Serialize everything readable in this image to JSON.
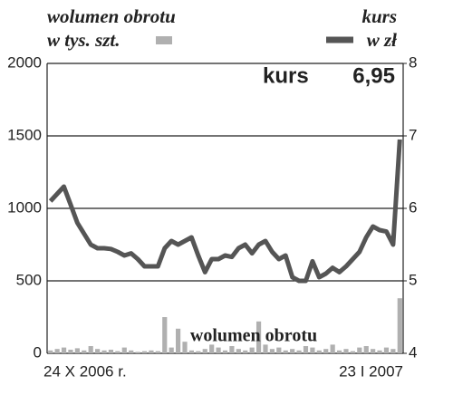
{
  "chart_data": {
    "type": "bar-line",
    "legend_left": [
      "wolumen obrotu",
      "w tys. szt."
    ],
    "legend_right": [
      "kurs",
      "w zł"
    ],
    "annotation": "wolumen obrotu",
    "categories": [
      "24 X 2006 r.",
      null,
      null,
      null,
      null,
      null,
      null,
      null,
      null,
      null,
      null,
      null,
      null,
      null,
      null,
      null,
      null,
      null,
      null,
      null,
      null,
      null,
      null,
      null,
      null,
      null,
      null,
      null,
      null,
      null,
      null,
      null,
      null,
      null,
      null,
      null,
      null,
      null,
      null,
      null,
      null,
      null,
      null,
      null,
      null,
      null,
      null,
      null,
      null,
      null,
      null,
      null,
      "23 I 2007"
    ],
    "series": [
      {
        "name": "wolumen obrotu",
        "color": "#b0b0b0",
        "axis": "y",
        "values": [
          20,
          30,
          40,
          25,
          35,
          20,
          50,
          30,
          20,
          25,
          15,
          40,
          20,
          10,
          15,
          20,
          15,
          250,
          40,
          170,
          80,
          20,
          15,
          30,
          60,
          40,
          20,
          50,
          30,
          20,
          40,
          220,
          60,
          30,
          40,
          20,
          30,
          20,
          50,
          40,
          20,
          30,
          60,
          20,
          30,
          15,
          40,
          50,
          30,
          20,
          40,
          30,
          380
        ]
      },
      {
        "name": "kurs",
        "color": "#555555",
        "axis": "y2",
        "values": [
          6.1,
          6.2,
          6.3,
          6.05,
          5.8,
          5.65,
          5.5,
          5.45,
          5.45,
          5.44,
          5.4,
          5.35,
          5.38,
          5.3,
          5.2,
          5.2,
          5.2,
          5.45,
          5.55,
          5.5,
          5.55,
          5.6,
          5.35,
          5.12,
          5.3,
          5.3,
          5.35,
          5.33,
          5.45,
          5.5,
          5.38,
          5.5,
          5.55,
          5.4,
          5.3,
          5.35,
          5.05,
          5.0,
          5.0,
          5.27,
          5.05,
          5.1,
          5.18,
          5.12,
          5.2,
          5.3,
          5.4,
          5.6,
          5.75,
          5.7,
          5.68,
          5.5,
          6.95
        ],
        "value_labels": [
          null,
          null,
          null,
          null,
          null,
          null,
          null,
          null,
          null,
          null,
          null,
          null,
          null,
          null,
          null,
          null,
          null,
          null,
          null,
          null,
          null,
          null,
          null,
          null,
          null,
          null,
          null,
          null,
          null,
          null,
          null,
          null,
          null,
          null,
          null,
          null,
          null,
          null,
          null,
          null,
          null,
          null,
          null,
          null,
          null,
          null,
          null,
          null,
          null,
          null,
          null,
          null,
          "6,95"
        ]
      }
    ],
    "ylim": [
      0,
      2000
    ],
    "yticks": [
      0,
      500,
      1000,
      1500,
      2000
    ],
    "y2lim": [
      4,
      8
    ],
    "y2ticks": [
      4,
      5,
      6,
      7,
      8
    ],
    "grid": true
  }
}
